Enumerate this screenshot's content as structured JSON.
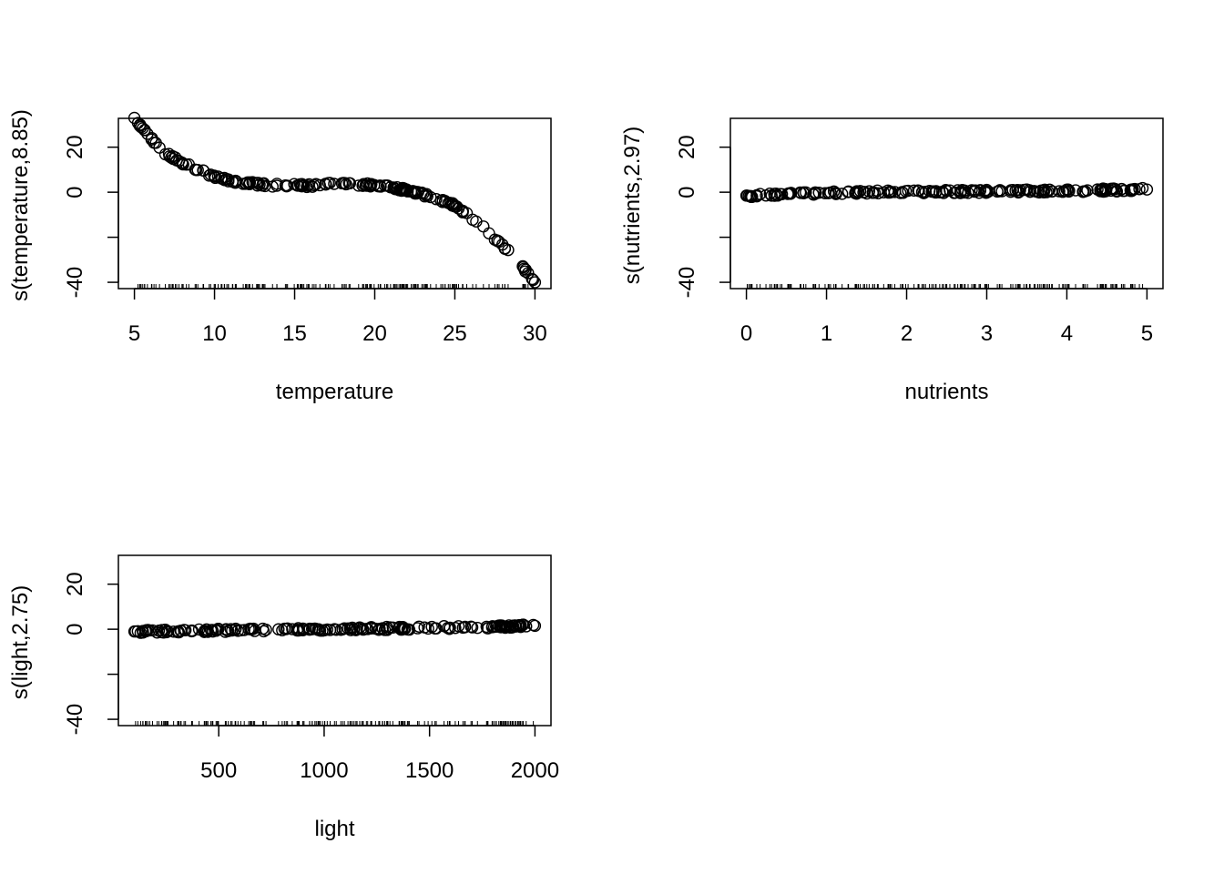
{
  "chart_data": [
    {
      "type": "scatter",
      "xlabel": "temperature",
      "ylabel": "s(temperature,8.85)",
      "xlim": [
        5,
        30
      ],
      "ylim": [
        -40,
        30
      ],
      "xticks": [
        5,
        10,
        15,
        20,
        25,
        30
      ],
      "yticks": [
        -40,
        0,
        20
      ],
      "xtick_labels": [
        "5",
        "10",
        "15",
        "20",
        "25",
        "30"
      ],
      "ytick_labels": [
        "-40",
        "0",
        "20"
      ],
      "grid": false,
      "rug": true,
      "curve": [
        [
          5,
          33
        ],
        [
          6,
          24
        ],
        [
          7,
          17
        ],
        [
          8,
          13
        ],
        [
          9,
          10
        ],
        [
          10,
          7
        ],
        [
          11,
          5
        ],
        [
          12,
          4
        ],
        [
          13,
          3.5
        ],
        [
          14,
          3
        ],
        [
          15,
          3
        ],
        [
          16,
          3
        ],
        [
          17,
          3.5
        ],
        [
          18,
          3.5
        ],
        [
          19,
          3.5
        ],
        [
          20,
          3
        ],
        [
          21,
          2
        ],
        [
          22,
          1
        ],
        [
          23,
          -1
        ],
        [
          24,
          -3
        ],
        [
          25,
          -6
        ],
        [
          26,
          -11
        ],
        [
          27,
          -17
        ],
        [
          28,
          -24
        ],
        [
          29,
          -31
        ],
        [
          30,
          -40
        ]
      ]
    },
    {
      "type": "scatter",
      "xlabel": "nutrients",
      "ylabel": "s(nutrients,2.97)",
      "xlim": [
        0,
        5
      ],
      "ylim": [
        -40,
        30
      ],
      "xticks": [
        0,
        1,
        2,
        3,
        4,
        5
      ],
      "yticks": [
        -40,
        0,
        20
      ],
      "xtick_labels": [
        "0",
        "1",
        "2",
        "3",
        "4",
        "5"
      ],
      "ytick_labels": [
        "-40",
        "0",
        "20"
      ],
      "grid": false,
      "rug": true,
      "curve": [
        [
          0.1,
          -1.5
        ],
        [
          0.5,
          -0.8
        ],
        [
          1,
          -0.2
        ],
        [
          2,
          0.2
        ],
        [
          3,
          0.4
        ],
        [
          4,
          0.7
        ],
        [
          5,
          1.2
        ]
      ]
    },
    {
      "type": "scatter",
      "xlabel": "light",
      "ylabel": "s(light,2.75)",
      "xlim": [
        100,
        2000
      ],
      "ylim": [
        -40,
        30
      ],
      "xticks": [
        500,
        1000,
        1500,
        2000
      ],
      "yticks": [
        -40,
        0,
        20
      ],
      "xtick_labels": [
        "500",
        "1000",
        "1500",
        "2000"
      ],
      "ytick_labels": [
        "-40",
        "0",
        "20"
      ],
      "grid": false,
      "rug": true,
      "curve": [
        [
          100,
          -1
        ],
        [
          500,
          -0.5
        ],
        [
          1000,
          0
        ],
        [
          1500,
          0.6
        ],
        [
          2000,
          1.5
        ]
      ]
    }
  ]
}
